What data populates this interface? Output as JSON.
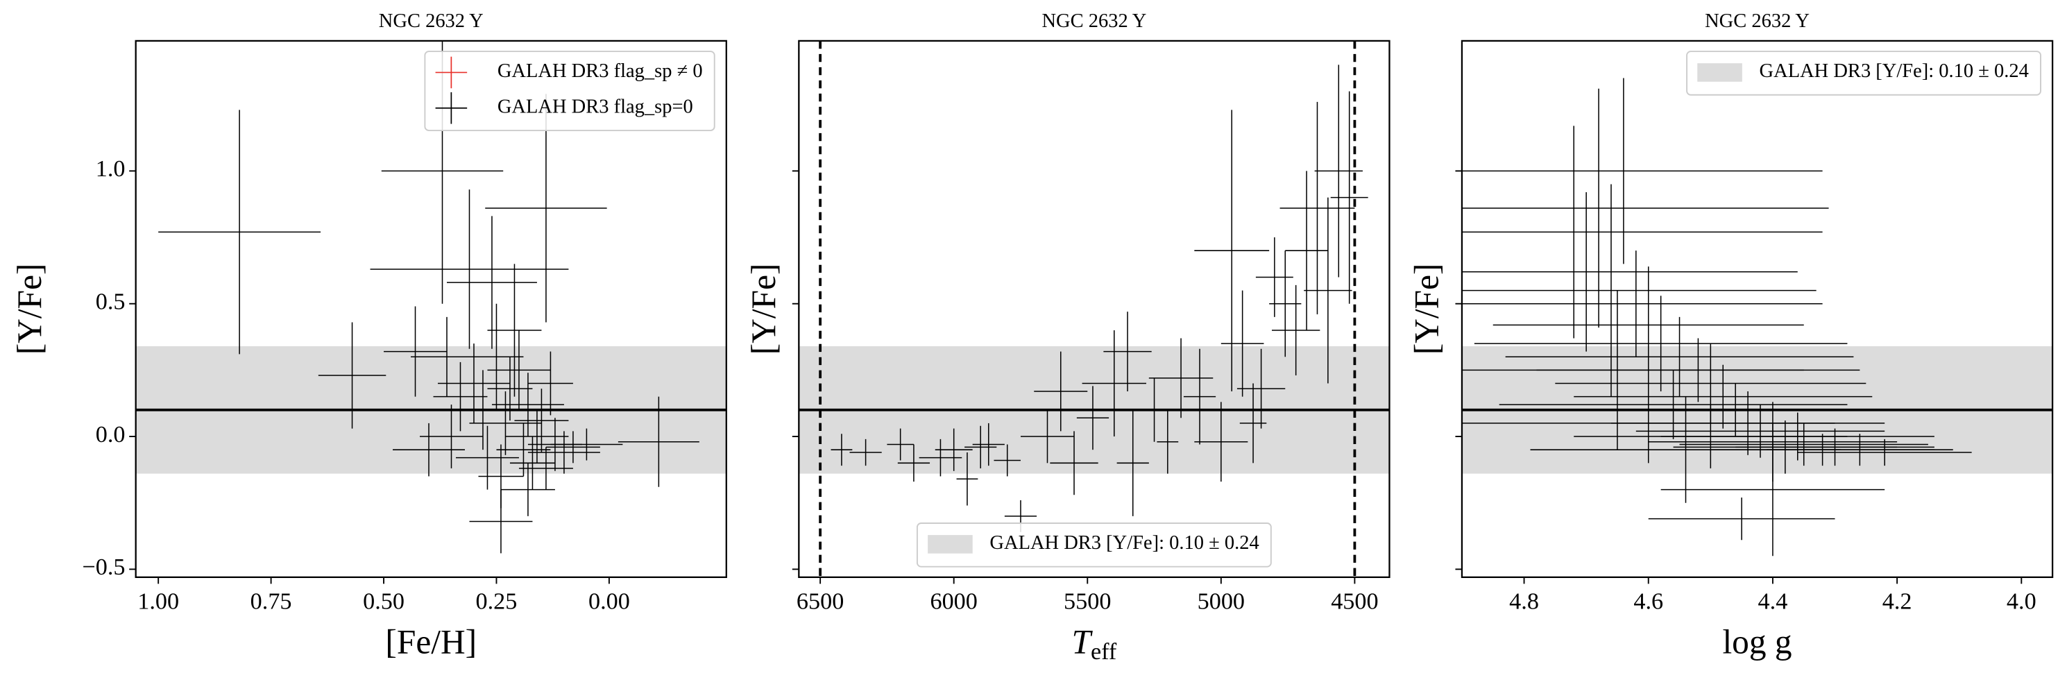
{
  "chart_data": [
    {
      "type": "scatter",
      "title": "NGC 2632 Y",
      "xlabel": "[Fe/H]",
      "ylabel": "[Y/Fe]",
      "xlim": [
        1.05,
        -0.26
      ],
      "ylim": [
        -0.53,
        1.49
      ],
      "xticks": [
        {
          "value": 1,
          "label": "1.00"
        },
        {
          "value": 0.75,
          "label": "0.75"
        },
        {
          "value": 0.5,
          "label": "0.50"
        },
        {
          "value": 0.25,
          "label": "0.25"
        },
        {
          "value": 0,
          "label": "0.00"
        }
      ],
      "yticks": [
        {
          "value": -0.5,
          "label": "−0.5"
        },
        {
          "value": 0,
          "label": "0.0"
        },
        {
          "value": 0.5,
          "label": "0.5"
        },
        {
          "value": 1,
          "label": "1.0"
        }
      ],
      "band": {
        "center": 0.1,
        "halfwidth": 0.24,
        "color": "#dcdcdc"
      },
      "legend": "upper right",
      "series": [
        {
          "name": "GALAH DR3 flag_sp ≠ 0",
          "color": "#e8312a",
          "x": [],
          "y": [],
          "xerr": [],
          "yerr": []
        },
        {
          "name": "GALAH DR3 flag_sp=0",
          "color": "#000000",
          "x": [
            0.82,
            0.57,
            0.43,
            0.37,
            0.31,
            0.14,
            0.26,
            -0.11,
            0.24,
            0.3,
            0.28,
            0.25,
            0.23,
            0.22,
            0.2,
            0.19,
            0.18,
            0.17,
            0.16,
            0.15,
            0.14,
            0.13,
            0.12,
            0.1,
            0.08,
            0.05,
            0.35,
            0.33,
            0.4,
            0.27,
            0.21,
            0.36,
            0.24,
            0.18
          ],
          "y": [
            0.77,
            0.23,
            0.32,
            1.0,
            0.63,
            0.86,
            0.58,
            -0.02,
            -0.32,
            0.2,
            0.1,
            0.3,
            0.05,
            0.18,
            0.25,
            -0.05,
            0.12,
            -0.1,
            0.0,
            0.06,
            -0.12,
            0.2,
            -0.03,
            -0.06,
            -0.04,
            -0.03,
            0.0,
            0.15,
            -0.05,
            -0.08,
            0.4,
            0.3,
            -0.15,
            -0.2
          ],
          "xerr": [
            0.18,
            0.075,
            0.07,
            0.135,
            0.22,
            0.135,
            0.1,
            0.09,
            0.07,
            0.08,
            0.07,
            0.06,
            0.08,
            0.05,
            0.07,
            0.06,
            0.08,
            0.05,
            0.07,
            0.06,
            0.06,
            0.05,
            0.06,
            0.08,
            0.06,
            0.08,
            0.07,
            0.06,
            0.08,
            0.07,
            0.06,
            0.08,
            0.05,
            0.06
          ],
          "yerr": [
            0.46,
            0.2,
            0.17,
            0.5,
            0.3,
            0.43,
            0.25,
            0.17,
            0.12,
            0.15,
            0.15,
            0.2,
            0.12,
            0.12,
            0.15,
            0.1,
            0.12,
            0.1,
            0.1,
            0.12,
            0.08,
            0.12,
            0.1,
            0.08,
            0.06,
            0.06,
            0.12,
            0.13,
            0.1,
            0.12,
            0.25,
            0.15,
            0.12,
            0.1
          ]
        }
      ]
    },
    {
      "type": "scatter",
      "title": "NGC 2632 Y",
      "xlabel": "T",
      "xlabel_subscript": "eff",
      "ylabel": "[Y/Fe]",
      "xlim": [
        6580,
        4370
      ],
      "ylim": [
        -0.53,
        1.49
      ],
      "xticks": [
        6500,
        6000,
        5500,
        5000,
        4500
      ],
      "yticks": [
        -0.5,
        0,
        0.5,
        1
      ],
      "vlines": [
        6500,
        4500
      ],
      "band": {
        "label": "GALAH DR3 [Y/Fe]: 0.10 ± 0.24",
        "center": 0.1,
        "halfwidth": 0.24,
        "color": "#dcdcdc"
      },
      "legend": "lower center",
      "series": [
        {
          "color": "#000000",
          "x": [
            6420,
            6330,
            6200,
            6150,
            6050,
            6000,
            5950,
            5870,
            5800,
            5750,
            5650,
            5600,
            5550,
            5480,
            5400,
            5350,
            5330,
            5250,
            5150,
            5080,
            5000,
            4960,
            4920,
            4850,
            4800,
            4760,
            4720,
            4680,
            4640,
            4600,
            4560,
            4520,
            5200,
            5900,
            4880
          ],
          "y": [
            -0.05,
            -0.06,
            -0.03,
            -0.1,
            -0.08,
            -0.05,
            -0.16,
            -0.03,
            -0.09,
            -0.3,
            0.0,
            0.17,
            -0.1,
            0.07,
            0.2,
            0.32,
            -0.1,
            0.1,
            0.22,
            0.15,
            -0.02,
            0.7,
            0.35,
            0.18,
            0.6,
            0.5,
            0.4,
            0.7,
            0.86,
            0.55,
            1.0,
            0.9,
            -0.02,
            -0.04,
            0.05
          ],
          "xerr": [
            40,
            60,
            50,
            60,
            80,
            70,
            40,
            60,
            50,
            60,
            100,
            100,
            90,
            60,
            120,
            90,
            60,
            90,
            120,
            60,
            100,
            140,
            80,
            90,
            70,
            60,
            90,
            80,
            140,
            90,
            90,
            70,
            40,
            60,
            50
          ],
          "yerr": [
            0.06,
            0.05,
            0.06,
            0.07,
            0.07,
            0.08,
            0.1,
            0.08,
            0.06,
            0.06,
            0.1,
            0.15,
            0.12,
            0.12,
            0.2,
            0.15,
            0.2,
            0.12,
            0.15,
            0.18,
            0.15,
            0.53,
            0.2,
            0.15,
            0.15,
            0.2,
            0.17,
            0.3,
            0.4,
            0.35,
            0.4,
            0.4,
            0.12,
            0.08,
            0.15
          ]
        }
      ]
    },
    {
      "type": "scatter",
      "title": "NGC 2632 Y",
      "xlabel": "log g",
      "ylabel": "[Y/Fe]",
      "xlim": [
        4.9,
        3.95
      ],
      "ylim": [
        -0.53,
        1.49
      ],
      "xticks": [
        {
          "value": 4.8,
          "label": "4.8"
        },
        {
          "value": 4.6,
          "label": "4.6"
        },
        {
          "value": 4.4,
          "label": "4.4"
        },
        {
          "value": 4.2,
          "label": "4.2"
        },
        {
          "value": 4,
          "label": "4.0"
        }
      ],
      "yticks": [
        -0.5,
        0,
        0.5,
        1
      ],
      "band": {
        "label": "GALAH DR3 [Y/Fe]: 0.10 ± 0.24",
        "center": 0.1,
        "halfwidth": 0.24,
        "color": "#dcdcdc"
      },
      "legend": "upper right",
      "series": [
        {
          "color": "#000000",
          "x": [
            4.64,
            4.68,
            4.72,
            4.7,
            4.66,
            4.62,
            4.6,
            4.58,
            4.55,
            4.52,
            4.5,
            4.48,
            4.46,
            4.44,
            4.42,
            4.4,
            4.38,
            4.35,
            4.32,
            4.3,
            4.26,
            4.22,
            4.45,
            4.4,
            4.54,
            4.6,
            4.65,
            4.5,
            4.36,
            4.56
          ],
          "y": [
            1.0,
            0.86,
            0.77,
            0.62,
            0.55,
            0.5,
            0.42,
            0.35,
            0.3,
            0.25,
            0.2,
            0.15,
            0.1,
            0.05,
            0.02,
            -0.02,
            -0.04,
            -0.03,
            -0.05,
            -0.04,
            -0.05,
            -0.06,
            -0.31,
            -0.2,
            -0.05,
            0.05,
            0.25,
            0.0,
            0.0,
            0.12
          ],
          "xerr": [
            0.32,
            0.37,
            0.4,
            0.34,
            0.33,
            0.3,
            0.25,
            0.3,
            0.28,
            0.26,
            0.25,
            0.24,
            0.22,
            0.22,
            0.2,
            0.2,
            0.18,
            0.2,
            0.18,
            0.16,
            0.15,
            0.14,
            0.15,
            0.18,
            0.25,
            0.3,
            0.3,
            0.22,
            0.22,
            0.28
          ],
          "yerr": [
            0.35,
            0.45,
            0.4,
            0.3,
            0.4,
            0.2,
            0.22,
            0.18,
            0.15,
            0.12,
            0.15,
            0.12,
            0.1,
            0.12,
            0.1,
            0.15,
            0.1,
            0.08,
            0.06,
            0.07,
            0.06,
            0.05,
            0.08,
            0.25,
            0.2,
            0.15,
            0.3,
            0.12,
            0.09,
            0.13
          ]
        }
      ]
    }
  ]
}
